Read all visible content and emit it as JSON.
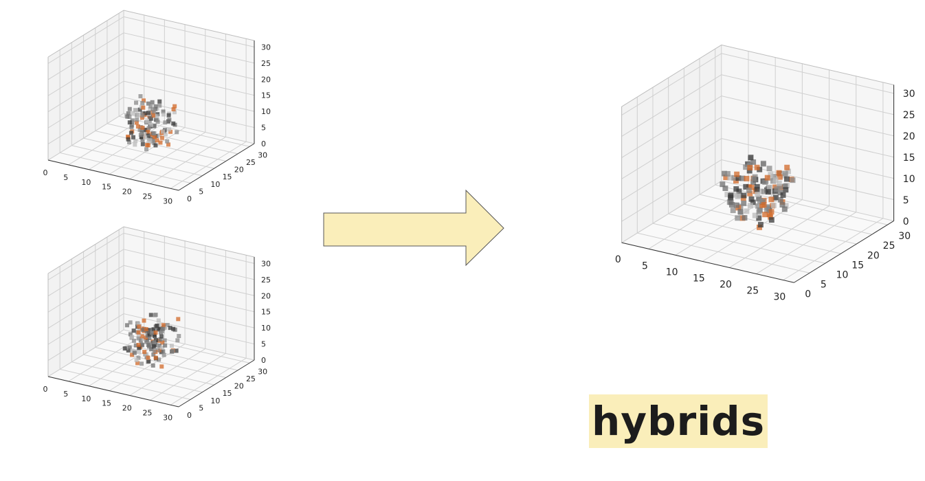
{
  "chart_data": [
    {
      "type": "scatter3d",
      "x_ticks": [
        "0",
        "5",
        "10",
        "15",
        "20",
        "25",
        "30"
      ],
      "y_ticks": [
        "0",
        "5",
        "10",
        "15",
        "20",
        "25",
        "30"
      ],
      "z_ticks": [
        "0",
        "5",
        "10",
        "15",
        "20",
        "25",
        "30"
      ],
      "xlim": [
        0,
        32
      ],
      "ylim": [
        0,
        32
      ],
      "zlim": [
        0,
        32
      ],
      "grid": true,
      "content": "voxel object centered near (16,16,8)"
    },
    {
      "type": "scatter3d",
      "x_ticks": [
        "0",
        "5",
        "10",
        "15",
        "20",
        "25",
        "30"
      ],
      "y_ticks": [
        "0",
        "5",
        "10",
        "15",
        "20",
        "25",
        "30"
      ],
      "z_ticks": [
        "0",
        "5",
        "10",
        "15",
        "20",
        "25",
        "30"
      ],
      "xlim": [
        0,
        32
      ],
      "ylim": [
        0,
        32
      ],
      "zlim": [
        0,
        32
      ],
      "grid": true,
      "content": "voxel object centered near (16,16,8)"
    },
    {
      "type": "scatter3d",
      "x_ticks": [
        "0",
        "5",
        "10",
        "15",
        "20",
        "25",
        "30"
      ],
      "y_ticks": [
        "0",
        "5",
        "10",
        "15",
        "20",
        "25",
        "30"
      ],
      "z_ticks": [
        "0",
        "5",
        "10",
        "15",
        "20",
        "25",
        "30"
      ],
      "xlim": [
        0,
        32
      ],
      "ylim": [
        0,
        32
      ],
      "zlim": [
        0,
        32
      ],
      "grid": true,
      "content": "voxel object centered near (16,16,8)"
    }
  ],
  "colors": {
    "arrow_fill": "#faeeba",
    "arrow_stroke": "#555555",
    "label_bg": "#faeeba",
    "voxel_orange": "#d2692a",
    "voxel_gray": "#8a8a8a",
    "voxel_dark": "#3a3a3a"
  },
  "label": {
    "text": "hybrids"
  }
}
